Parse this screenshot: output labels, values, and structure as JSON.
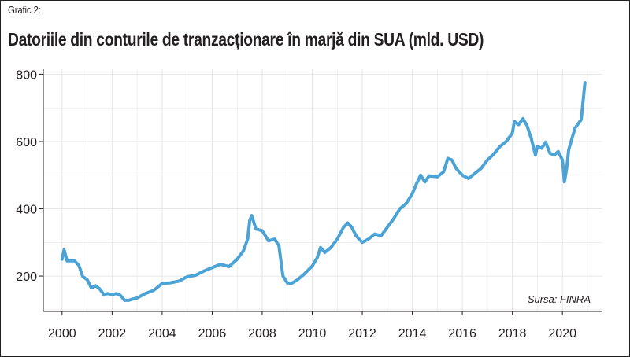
{
  "header": {
    "label": "Grafic 2:",
    "title": "Datoriile din conturile de tranzacționare în marjă din SUA (mld. USD)"
  },
  "colors": {
    "line": "#4ba3d6",
    "grid": "#e6e6e6",
    "axis": "#231f20"
  },
  "chart_data": {
    "type": "line",
    "title": "Datoriile din conturile de tranzacționare în marjă din SUA (mld. USD)",
    "xlabel": "",
    "ylabel": "",
    "xlim": [
      1999.25,
      2021.6
    ],
    "ylim": [
      95,
      815
    ],
    "xticks": [
      "2000",
      "2002",
      "2004",
      "2006",
      "2008",
      "2010",
      "2012",
      "2014",
      "2016",
      "2018",
      "2020"
    ],
    "yticks": [
      "200",
      "400",
      "600",
      "800"
    ],
    "grid": true,
    "source": "Sursa: FINRA",
    "series": [
      {
        "name": "",
        "x": [
          2000.0,
          2000.08,
          2000.2,
          2000.33,
          2000.5,
          2000.67,
          2000.83,
          2001.0,
          2001.17,
          2001.33,
          2001.5,
          2001.67,
          2001.83,
          2002.0,
          2002.17,
          2002.33,
          2002.5,
          2002.67,
          2002.83,
          2003.0,
          2003.33,
          2003.67,
          2004.0,
          2004.33,
          2004.67,
          2005.0,
          2005.33,
          2005.67,
          2006.0,
          2006.33,
          2006.67,
          2007.0,
          2007.25,
          2007.42,
          2007.5,
          2007.58,
          2007.75,
          2008.0,
          2008.25,
          2008.5,
          2008.67,
          2008.83,
          2009.0,
          2009.17,
          2009.42,
          2009.67,
          2010.0,
          2010.2,
          2010.33,
          2010.5,
          2010.75,
          2011.0,
          2011.25,
          2011.42,
          2011.58,
          2011.75,
          2012.0,
          2012.25,
          2012.5,
          2012.75,
          2013.0,
          2013.25,
          2013.5,
          2013.75,
          2014.0,
          2014.17,
          2014.33,
          2014.5,
          2014.67,
          2015.0,
          2015.25,
          2015.42,
          2015.58,
          2015.75,
          2016.0,
          2016.25,
          2016.5,
          2016.75,
          2017.0,
          2017.25,
          2017.5,
          2017.75,
          2018.0,
          2018.08,
          2018.25,
          2018.42,
          2018.58,
          2018.75,
          2018.92,
          2019.0,
          2019.17,
          2019.33,
          2019.5,
          2019.67,
          2019.83,
          2020.0,
          2020.08,
          2020.17,
          2020.25,
          2020.5,
          2020.75,
          2020.9
        ],
        "values": [
          250,
          278,
          245,
          245,
          245,
          232,
          198,
          190,
          165,
          172,
          162,
          145,
          148,
          145,
          148,
          143,
          128,
          128,
          132,
          135,
          148,
          158,
          178,
          180,
          185,
          198,
          202,
          215,
          225,
          235,
          228,
          250,
          275,
          310,
          365,
          380,
          340,
          335,
          305,
          310,
          290,
          200,
          180,
          178,
          190,
          205,
          230,
          255,
          285,
          270,
          285,
          310,
          345,
          358,
          345,
          320,
          300,
          310,
          325,
          320,
          345,
          370,
          400,
          415,
          445,
          475,
          500,
          480,
          498,
          495,
          510,
          550,
          545,
          520,
          500,
          490,
          505,
          520,
          545,
          562,
          585,
          600,
          625,
          660,
          650,
          668,
          648,
          610,
          560,
          585,
          580,
          598,
          565,
          560,
          570,
          545,
          480,
          520,
          575,
          640,
          665,
          775
        ]
      }
    ]
  }
}
